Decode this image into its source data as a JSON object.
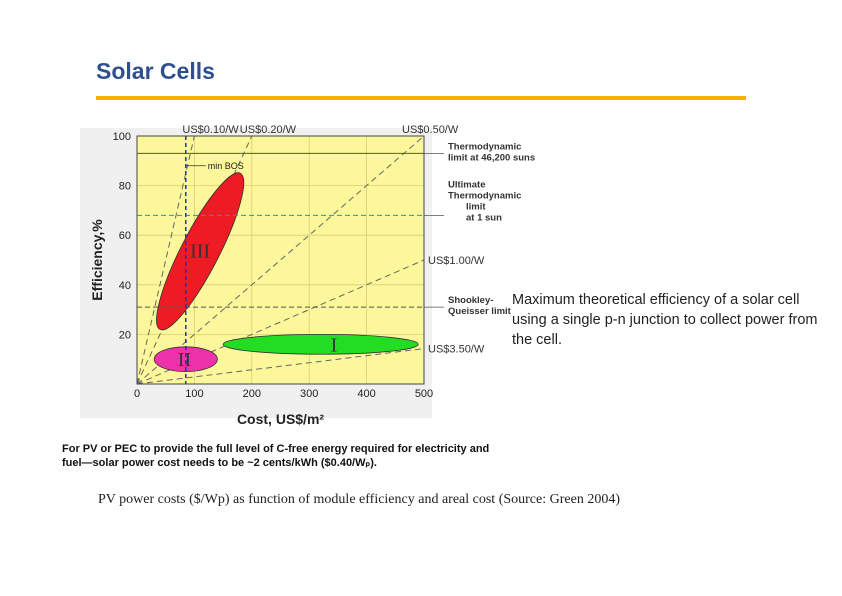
{
  "slide": {
    "title": "Solar Cells",
    "note": "Maximum theoretical efficiency of a solar cell using a single p-n junction to collect power from the cell.",
    "caption": "PV power costs ($/Wp) as function of module efficiency and areal cost (Source: Green 2004)"
  },
  "colors": {
    "title": "#2f4f8f",
    "rule": "#f0b400",
    "plot_bg": "#fbf79a",
    "gen1": "#22dd22",
    "gen2": "#ee33aa",
    "gen3": "#ee1b24"
  },
  "chart_data": {
    "type": "scatter",
    "xlabel": "Cost, US$/m²",
    "ylabel": "Efficiency,%",
    "xlim": [
      0,
      500
    ],
    "ylim": [
      0,
      100
    ],
    "x_ticks": [
      0,
      100,
      200,
      300,
      400,
      500
    ],
    "y_ticks": [
      20,
      40,
      60,
      80,
      100
    ],
    "grid": true,
    "cost_lines": [
      {
        "label": "US$0.10/W",
        "dollars_per_watt": 0.1,
        "position": "top"
      },
      {
        "label": "US$0.20/W",
        "dollars_per_watt": 0.2,
        "position": "top"
      },
      {
        "label": "US$0.50/W",
        "dollars_per_watt": 0.5,
        "position": "top"
      },
      {
        "label": "US$1.00/W",
        "dollars_per_watt": 1.0,
        "position": "right"
      },
      {
        "label": "US$3.50/W",
        "dollars_per_watt": 3.5,
        "position": "right"
      }
    ],
    "limits": [
      {
        "label": [
          "Thermodynamic",
          "limit at 46,200 suns"
        ],
        "efficiency": 93
      },
      {
        "label": [
          "Ultimate",
          "Thermodynamic",
          "limit",
          "at 1 sun"
        ],
        "efficiency": 68
      },
      {
        "label": [
          "Shookley-",
          "Queisser limit"
        ],
        "efficiency": 31
      }
    ],
    "min_bos": {
      "label": "min BOS",
      "cost": 85
    },
    "regions": [
      {
        "name": "I",
        "cost_range": [
          150,
          490
        ],
        "efficiency_range": [
          12,
          20
        ],
        "color": "#22dd22"
      },
      {
        "name": "II",
        "cost_range": [
          30,
          140
        ],
        "efficiency_range": [
          5,
          15
        ],
        "color": "#ee33aa"
      },
      {
        "name": "III",
        "cost_range": [
          40,
          180
        ],
        "efficiency_range": [
          22,
          85
        ],
        "color": "#ee1b24"
      }
    ],
    "annotation": "For PV or PEC to provide the full level of C-free energy required for electricity and fuel—solar power cost needs to be ~2 cents/kWh ($0.40/Wₚ)."
  }
}
